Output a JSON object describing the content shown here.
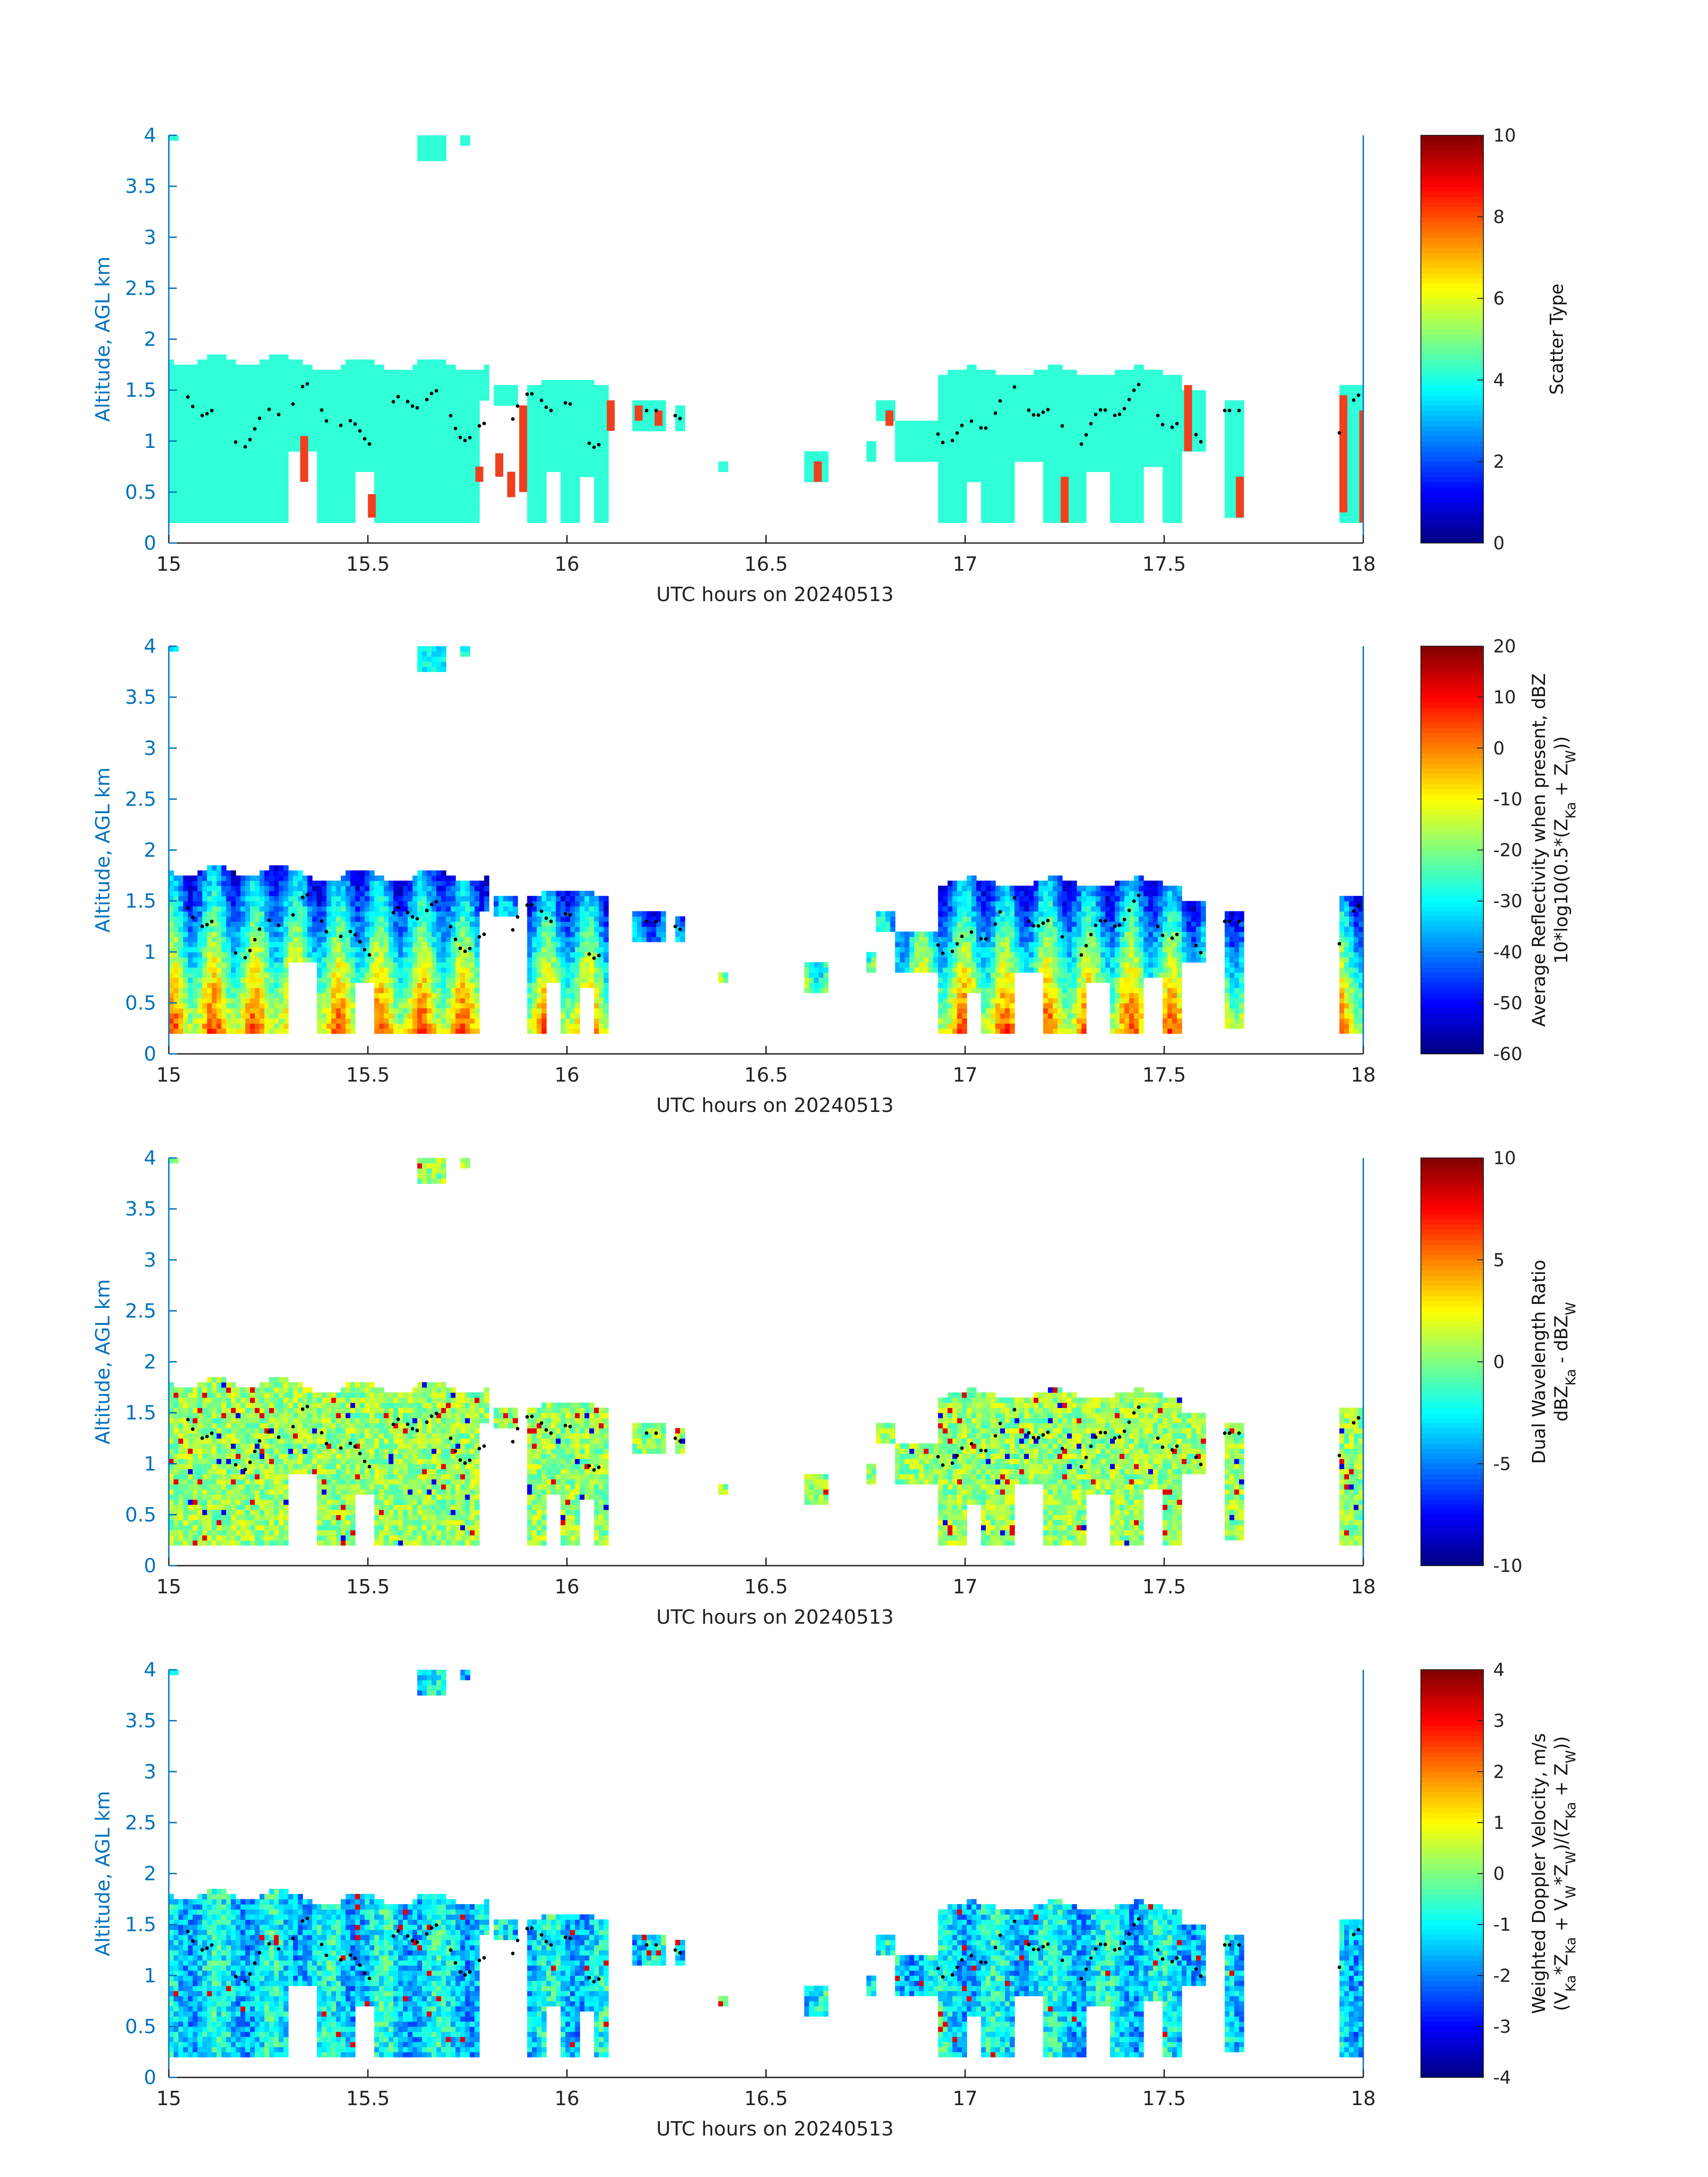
{
  "chart_data": [
    {
      "type": "heatmap",
      "xlabel": "UTC hours on 20240513",
      "ylabel": "Altitude, AGL km",
      "xlim": [
        15,
        18
      ],
      "ylim": [
        0,
        4
      ],
      "xticks": [
        "15",
        "15.5",
        "16",
        "16.5",
        "17",
        "17.5",
        "18"
      ],
      "yticks": [
        "0",
        "0.5",
        "1",
        "1.5",
        "2",
        "2.5",
        "3",
        "3.5",
        "4"
      ],
      "colorbar": {
        "label": "Scatter Type",
        "label2": "",
        "range": [
          0,
          10
        ],
        "ticks": [
          "0",
          "2",
          "4",
          "6",
          "8",
          "10"
        ]
      },
      "field_kind": "scatter",
      "colors": {
        "axis": "#0072BD",
        "cloud": "#30FFD8",
        "highlight": "#F04020",
        "dots": "#000000"
      }
    },
    {
      "type": "heatmap",
      "xlabel": "UTC hours on 20240513",
      "ylabel": "Altitude, AGL km",
      "xlim": [
        15,
        18
      ],
      "ylim": [
        0,
        4
      ],
      "xticks": [
        "15",
        "15.5",
        "16",
        "16.5",
        "17",
        "17.5",
        "18"
      ],
      "yticks": [
        "0",
        "0.5",
        "1",
        "1.5",
        "2",
        "2.5",
        "3",
        "3.5",
        "4"
      ],
      "colorbar": {
        "label": "Average Reflectivity when present, dBZ",
        "label2": "10*log10(0.5*(Z",
        "label2_sub1": "Ka",
        "label2_mid": " + Z",
        "label2_sub2": "W",
        "label2_end": "))",
        "range": [
          -60,
          20
        ],
        "ticks": [
          "-60",
          "-50",
          "-40",
          "-30",
          "-20",
          "-10",
          "0",
          "10",
          "20"
        ]
      },
      "field_kind": "reflectivity",
      "colors": {
        "axis": "#0072BD",
        "dots": "#000000"
      }
    },
    {
      "type": "heatmap",
      "xlabel": "UTC hours on 20240513",
      "ylabel": "Altitude, AGL km",
      "xlim": [
        15,
        18
      ],
      "ylim": [
        0,
        4
      ],
      "xticks": [
        "15",
        "15.5",
        "16",
        "16.5",
        "17",
        "17.5",
        "18"
      ],
      "yticks": [
        "0",
        "0.5",
        "1",
        "1.5",
        "2",
        "2.5",
        "3",
        "3.5",
        "4"
      ],
      "colorbar": {
        "label": "Dual Wavelength Ratio",
        "label2": "dBZ",
        "label2_sub1": "Ka",
        "label2_mid": " - dBZ",
        "label2_sub2": "W",
        "label2_end": "",
        "range": [
          -10,
          10
        ],
        "ticks": [
          "-10",
          "-5",
          "0",
          "5",
          "10"
        ]
      },
      "field_kind": "dwr",
      "colors": {
        "axis": "#0072BD",
        "dots": "#000000"
      }
    },
    {
      "type": "heatmap",
      "xlabel": "UTC hours on 20240513",
      "ylabel": "Altitude, AGL km",
      "xlim": [
        15,
        18
      ],
      "ylim": [
        0,
        4
      ],
      "xticks": [
        "15",
        "15.5",
        "16",
        "16.5",
        "17",
        "17.5",
        "18"
      ],
      "yticks": [
        "0",
        "0.5",
        "1",
        "1.5",
        "2",
        "2.5",
        "3",
        "3.5",
        "4"
      ],
      "colorbar": {
        "label": "Weighted Doppler Velocity, m/s",
        "label2": "(V",
        "label2_sub1": "Ka",
        "label2_mid": "*Z",
        "label2_sub2": "Ka",
        "label2_end": " + V",
        "label2_sub3": "W",
        "label2_tail": "*Z",
        "label2_sub4": "W",
        "label2_tail2": ")/(Z",
        "label2_sub5": "Ka",
        "label2_tail3": " + Z",
        "label2_sub6": "W",
        "label2_tail4": "))",
        "range": [
          -4,
          4
        ],
        "ticks": [
          "-4",
          "-3",
          "-2",
          "-1",
          "0",
          "1",
          "2",
          "3",
          "4"
        ]
      },
      "field_kind": "velocity",
      "colors": {
        "axis": "#0072BD",
        "dots": "#000000"
      }
    }
  ]
}
